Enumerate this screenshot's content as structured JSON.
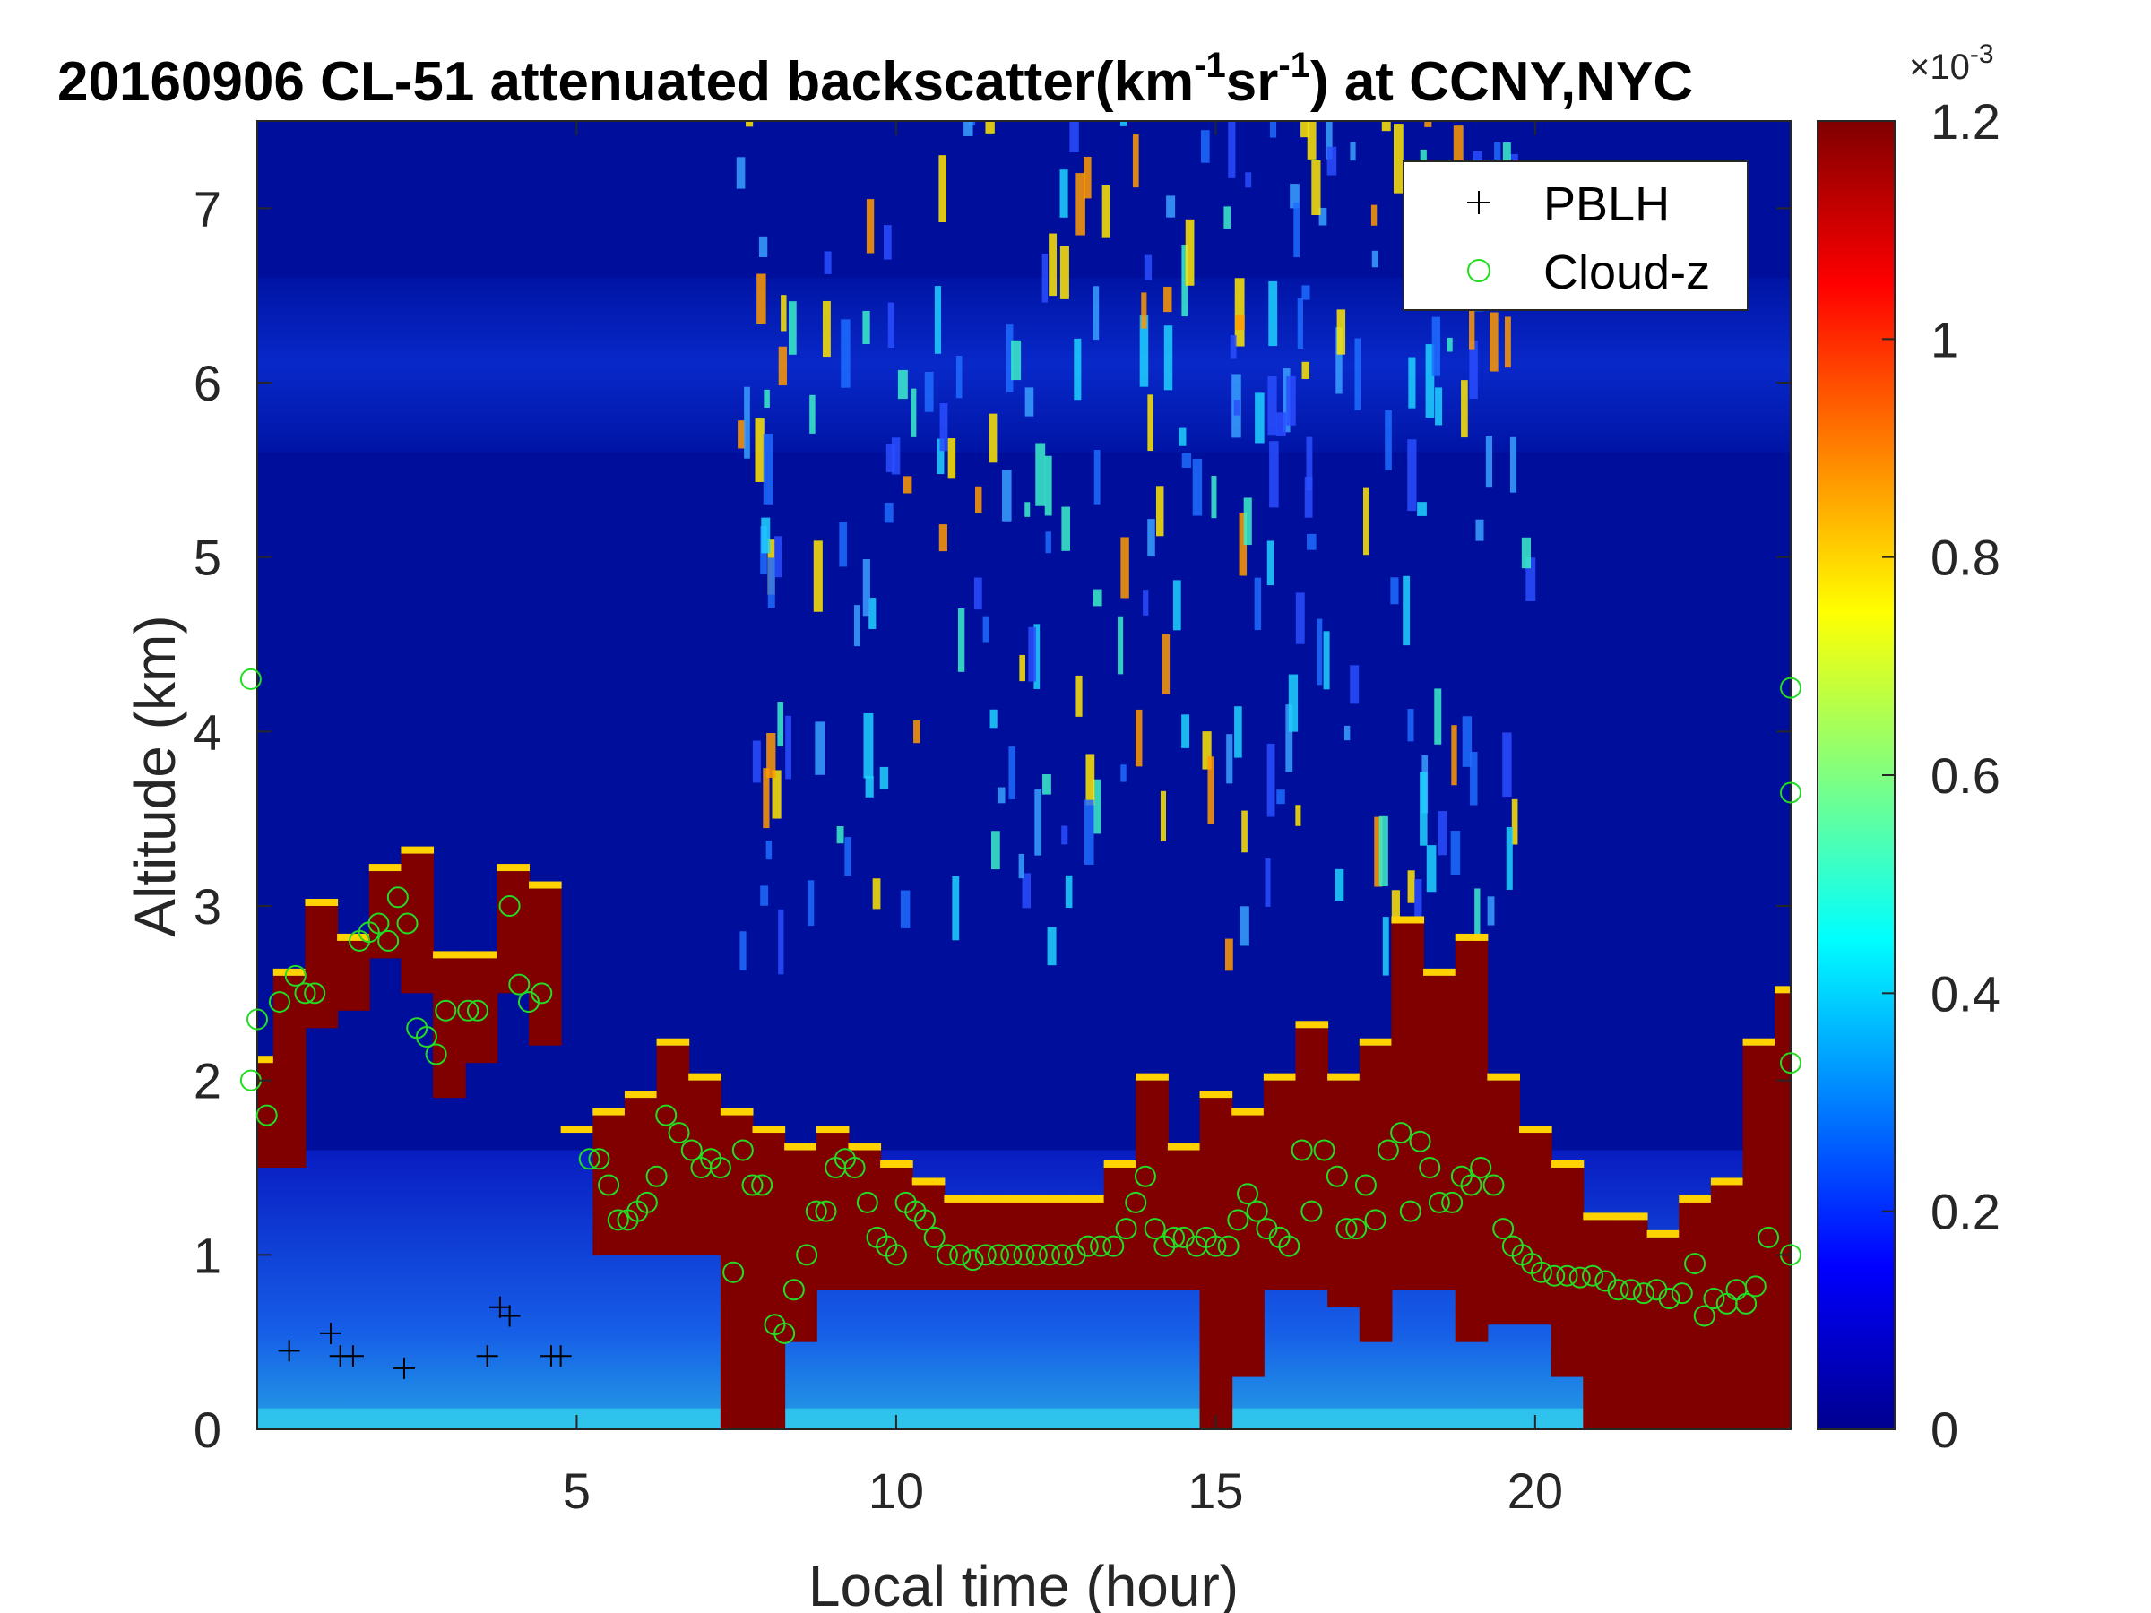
{
  "chart_data": {
    "type": "heatmap",
    "title_parts": {
      "prefix": "20160906  CL-51 attenuated backscatter(km",
      "sup1": "-1",
      "mid": "sr",
      "sup2": "-1",
      "suffix": ") at CCNY,NYC"
    },
    "xlabel": "Local time (hour)",
    "ylabel": "Altitude (km)",
    "xlim": [
      0,
      24
    ],
    "ylim": [
      0,
      7.5
    ],
    "xticks": [
      5,
      10,
      15,
      20
    ],
    "yticks": [
      0,
      1,
      2,
      3,
      4,
      5,
      6,
      7
    ],
    "colorbar": {
      "colormap": "jet",
      "range": [
        0,
        0.0012
      ],
      "tick_labels": [
        "0",
        "0.2",
        "0.4",
        "0.6",
        "0.8",
        "1",
        "1.2"
      ],
      "tick_values": [
        0,
        0.2,
        0.4,
        0.6,
        0.8,
        1.0,
        1.2
      ],
      "exponent_base": "×10",
      "exponent": "-3"
    },
    "legend": {
      "placement": "top-right",
      "entries": [
        {
          "marker": "+",
          "label": "PBLH",
          "color": "#000000"
        },
        {
          "marker": "o",
          "label": "Cloud-z",
          "color": "#22dd22"
        }
      ]
    },
    "cloud_layer": [
      [
        0.0,
        1.5,
        2.1
      ],
      [
        0.5,
        1.5,
        2.6
      ],
      [
        1.0,
        2.3,
        3.0
      ],
      [
        1.5,
        2.4,
        2.8
      ],
      [
        2.0,
        2.7,
        3.2
      ],
      [
        2.5,
        2.5,
        3.3
      ],
      [
        3.0,
        1.9,
        2.7
      ],
      [
        3.5,
        2.1,
        2.7
      ],
      [
        4.0,
        2.5,
        3.2
      ],
      [
        4.5,
        2.2,
        3.1
      ],
      [
        5.0,
        1.7,
        1.7
      ],
      [
        5.5,
        1.0,
        1.8
      ],
      [
        6.0,
        1.0,
        1.9
      ],
      [
        6.5,
        1.0,
        2.2
      ],
      [
        7.0,
        1.0,
        2.0
      ],
      [
        7.5,
        0.0,
        1.8
      ],
      [
        8.0,
        0.0,
        1.7
      ],
      [
        8.5,
        0.5,
        1.6
      ],
      [
        9.0,
        0.8,
        1.7
      ],
      [
        9.5,
        0.8,
        1.6
      ],
      [
        10.0,
        0.8,
        1.5
      ],
      [
        10.5,
        0.8,
        1.4
      ],
      [
        11.0,
        0.8,
        1.3
      ],
      [
        11.5,
        0.8,
        1.3
      ],
      [
        12.0,
        0.8,
        1.3
      ],
      [
        12.5,
        0.8,
        1.3
      ],
      [
        13.0,
        0.8,
        1.3
      ],
      [
        13.5,
        0.8,
        1.5
      ],
      [
        14.0,
        0.8,
        2.0
      ],
      [
        14.5,
        0.8,
        1.6
      ],
      [
        15.0,
        0.0,
        1.9
      ],
      [
        15.5,
        0.3,
        1.8
      ],
      [
        16.0,
        0.8,
        2.0
      ],
      [
        16.5,
        0.8,
        2.3
      ],
      [
        17.0,
        0.7,
        2.0
      ],
      [
        17.5,
        0.5,
        2.2
      ],
      [
        18.0,
        0.8,
        2.9
      ],
      [
        18.5,
        0.8,
        2.6
      ],
      [
        19.0,
        0.5,
        2.8
      ],
      [
        19.5,
        0.6,
        2.0
      ],
      [
        20.0,
        0.6,
        1.7
      ],
      [
        20.5,
        0.3,
        1.5
      ],
      [
        21.0,
        0.0,
        1.2
      ],
      [
        21.5,
        0.0,
        1.2
      ],
      [
        22.0,
        0.0,
        1.1
      ],
      [
        22.5,
        0.0,
        1.3
      ],
      [
        23.0,
        0.0,
        1.4
      ],
      [
        23.5,
        0.0,
        2.2
      ],
      [
        24.0,
        0.0,
        2.5
      ]
    ],
    "series": [
      {
        "name": "PBLH",
        "marker": "+",
        "points": [
          [
            0.5,
            0.45
          ],
          [
            1.15,
            0.55
          ],
          [
            1.3,
            0.42
          ],
          [
            1.5,
            0.42
          ],
          [
            2.3,
            0.35
          ],
          [
            3.6,
            0.42
          ],
          [
            3.8,
            0.7
          ],
          [
            3.95,
            0.65
          ],
          [
            4.6,
            0.42
          ],
          [
            4.75,
            0.42
          ]
        ]
      },
      {
        "name": "Cloud-z",
        "marker": "o",
        "points": [
          [
            -0.1,
            4.3
          ],
          [
            -0.1,
            2.0
          ],
          [
            0.0,
            2.35
          ],
          [
            0.15,
            1.8
          ],
          [
            0.35,
            2.45
          ],
          [
            0.6,
            2.6
          ],
          [
            0.75,
            2.5
          ],
          [
            0.9,
            2.5
          ],
          [
            1.6,
            2.8
          ],
          [
            1.75,
            2.85
          ],
          [
            1.9,
            2.9
          ],
          [
            2.05,
            2.8
          ],
          [
            2.2,
            3.05
          ],
          [
            2.35,
            2.9
          ],
          [
            2.5,
            2.3
          ],
          [
            2.65,
            2.25
          ],
          [
            2.8,
            2.15
          ],
          [
            2.95,
            2.4
          ],
          [
            3.3,
            2.4
          ],
          [
            3.45,
            2.4
          ],
          [
            3.95,
            3.0
          ],
          [
            4.1,
            2.55
          ],
          [
            4.25,
            2.45
          ],
          [
            4.45,
            2.5
          ],
          [
            5.2,
            1.55
          ],
          [
            5.35,
            1.55
          ],
          [
            5.5,
            1.4
          ],
          [
            5.65,
            1.2
          ],
          [
            5.8,
            1.2
          ],
          [
            5.95,
            1.25
          ],
          [
            6.1,
            1.3
          ],
          [
            6.25,
            1.45
          ],
          [
            6.4,
            1.8
          ],
          [
            6.6,
            1.7
          ],
          [
            6.8,
            1.6
          ],
          [
            6.95,
            1.5
          ],
          [
            7.1,
            1.55
          ],
          [
            7.25,
            1.5
          ],
          [
            7.45,
            0.9
          ],
          [
            7.6,
            1.6
          ],
          [
            7.75,
            1.4
          ],
          [
            7.9,
            1.4
          ],
          [
            8.1,
            0.6
          ],
          [
            8.25,
            0.55
          ],
          [
            8.4,
            0.8
          ],
          [
            8.6,
            1.0
          ],
          [
            8.75,
            1.25
          ],
          [
            8.9,
            1.25
          ],
          [
            9.05,
            1.5
          ],
          [
            9.2,
            1.55
          ],
          [
            9.35,
            1.5
          ],
          [
            9.55,
            1.3
          ],
          [
            9.7,
            1.1
          ],
          [
            9.85,
            1.05
          ],
          [
            10.0,
            1.0
          ],
          [
            10.15,
            1.3
          ],
          [
            10.3,
            1.25
          ],
          [
            10.45,
            1.2
          ],
          [
            10.6,
            1.1
          ],
          [
            10.8,
            1.0
          ],
          [
            11.0,
            1.0
          ],
          [
            11.2,
            0.97
          ],
          [
            11.4,
            1.0
          ],
          [
            11.6,
            1.0
          ],
          [
            11.8,
            1.0
          ],
          [
            12.0,
            1.0
          ],
          [
            12.2,
            1.0
          ],
          [
            12.4,
            1.0
          ],
          [
            12.6,
            1.0
          ],
          [
            12.8,
            1.0
          ],
          [
            13.0,
            1.05
          ],
          [
            13.2,
            1.05
          ],
          [
            13.4,
            1.05
          ],
          [
            13.6,
            1.15
          ],
          [
            13.75,
            1.3
          ],
          [
            13.9,
            1.45
          ],
          [
            14.05,
            1.15
          ],
          [
            14.2,
            1.05
          ],
          [
            14.35,
            1.1
          ],
          [
            14.5,
            1.1
          ],
          [
            14.7,
            1.05
          ],
          [
            14.85,
            1.1
          ],
          [
            15.0,
            1.05
          ],
          [
            15.2,
            1.05
          ],
          [
            15.35,
            1.2
          ],
          [
            15.5,
            1.35
          ],
          [
            15.65,
            1.25
          ],
          [
            15.8,
            1.15
          ],
          [
            16.0,
            1.1
          ],
          [
            16.15,
            1.05
          ],
          [
            16.35,
            1.6
          ],
          [
            16.5,
            1.25
          ],
          [
            16.7,
            1.6
          ],
          [
            16.9,
            1.45
          ],
          [
            17.05,
            1.15
          ],
          [
            17.2,
            1.15
          ],
          [
            17.35,
            1.4
          ],
          [
            17.5,
            1.2
          ],
          [
            17.7,
            1.6
          ],
          [
            17.9,
            1.7
          ],
          [
            18.05,
            1.25
          ],
          [
            18.2,
            1.65
          ],
          [
            18.35,
            1.5
          ],
          [
            18.5,
            1.3
          ],
          [
            18.7,
            1.3
          ],
          [
            18.85,
            1.45
          ],
          [
            19.0,
            1.4
          ],
          [
            19.15,
            1.5
          ],
          [
            19.35,
            1.4
          ],
          [
            19.5,
            1.15
          ],
          [
            19.65,
            1.05
          ],
          [
            19.8,
            1.0
          ],
          [
            19.95,
            0.95
          ],
          [
            20.1,
            0.9
          ],
          [
            20.3,
            0.88
          ],
          [
            20.5,
            0.88
          ],
          [
            20.7,
            0.87
          ],
          [
            20.9,
            0.88
          ],
          [
            21.1,
            0.85
          ],
          [
            21.3,
            0.8
          ],
          [
            21.5,
            0.8
          ],
          [
            21.7,
            0.78
          ],
          [
            21.9,
            0.8
          ],
          [
            22.1,
            0.75
          ],
          [
            22.3,
            0.78
          ],
          [
            22.5,
            0.95
          ],
          [
            22.65,
            0.65
          ],
          [
            22.8,
            0.75
          ],
          [
            23.0,
            0.72
          ],
          [
            23.15,
            0.8
          ],
          [
            23.3,
            0.72
          ],
          [
            23.45,
            0.82
          ],
          [
            23.65,
            1.1
          ],
          [
            24.0,
            1.0
          ],
          [
            24.0,
            2.1
          ],
          [
            24.0,
            3.65
          ],
          [
            24.0,
            4.25
          ]
        ]
      }
    ]
  }
}
